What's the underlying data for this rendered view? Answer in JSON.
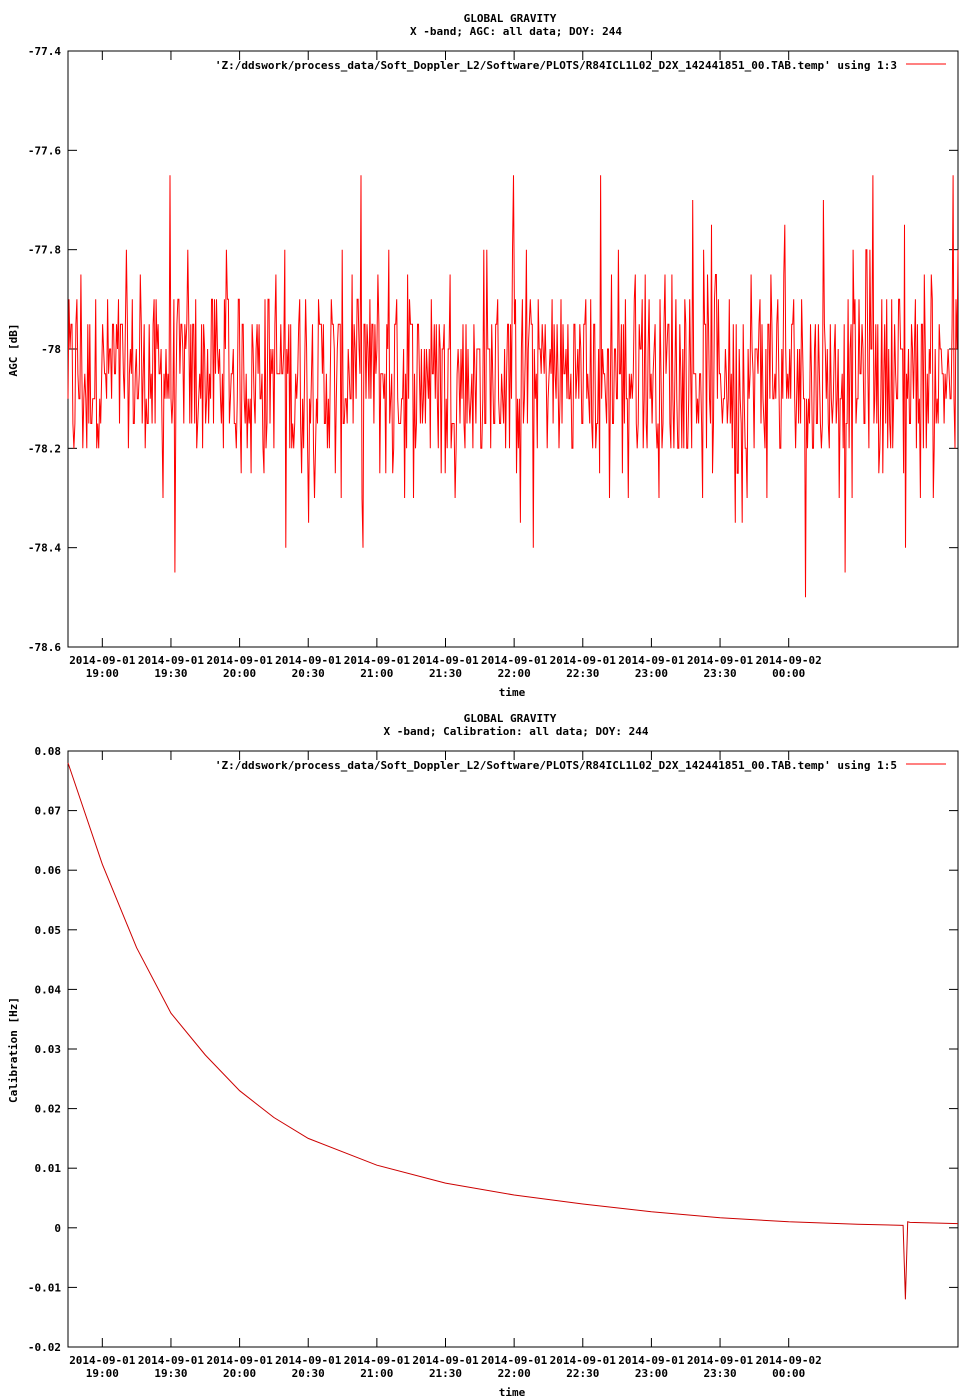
{
  "figure": {
    "background": "#ffffff",
    "line_color": "#ff0000",
    "calib_line_color": "#cc0000"
  },
  "chart_data": [
    {
      "type": "line",
      "title": "GLOBAL GRAVITY",
      "subtitle": "X -band; AGC: all data; DOY: 244",
      "xlabel": "time",
      "ylabel": "AGC [dB]",
      "ylim": [
        -78.6,
        -77.4
      ],
      "yticks": [
        -77.4,
        -77.6,
        -77.8,
        -78,
        -78.2,
        -78.4,
        -78.6
      ],
      "ytick_labels": [
        "-77.4",
        "-77.6",
        "-77.8",
        "-78",
        "-78.2",
        "-78.4",
        "-78.6"
      ],
      "xlim": [
        "2014-09-01 18:45",
        "2014-09-02 01:14"
      ],
      "xticks": [
        "2014-09-01 19:00",
        "2014-09-01 19:30",
        "2014-09-01 20:00",
        "2014-09-01 20:30",
        "2014-09-01 21:00",
        "2014-09-01 21:30",
        "2014-09-01 22:00",
        "2014-09-01 22:30",
        "2014-09-01 23:00",
        "2014-09-01 23:30",
        "2014-09-02 00:00"
      ],
      "xtick_date_labels": [
        "2014-09-01",
        "2014-09-01",
        "2014-09-01",
        "2014-09-01",
        "2014-09-01",
        "2014-09-01",
        "2014-09-01",
        "2014-09-01",
        "2014-09-01",
        "2014-09-01",
        "2014-09-02"
      ],
      "xtick_time_labels": [
        "19:00",
        "19:30",
        "20:00",
        "20:30",
        "21:00",
        "21:30",
        "22:00",
        "22:30",
        "23:00",
        "23:30",
        "00:00"
      ],
      "legend_position": "top-right",
      "series": [
        {
          "name": "'Z:/ddswork/process_data/Soft_Doppler_L2/Software/PLOTS/R84ICL1L02_D2X_142441851_00.TAB.temp' using 1:3",
          "baseline": -78.05,
          "quantization": 0.05,
          "min": -78.6,
          "max": -77.6,
          "typical_range": [
            -78.3,
            -77.9
          ]
        }
      ]
    },
    {
      "type": "line",
      "title": "GLOBAL GRAVITY",
      "subtitle": "X -band; Calibration: all data; DOY: 244",
      "xlabel": "time",
      "ylabel": "Calibration [Hz]",
      "ylim": [
        -0.02,
        0.08
      ],
      "yticks": [
        0.08,
        0.07,
        0.06,
        0.05,
        0.04,
        0.03,
        0.02,
        0.01,
        0,
        -0.01,
        -0.02
      ],
      "ytick_labels": [
        "0.08",
        "0.07",
        "0.06",
        "0.05",
        "0.04",
        "0.03",
        "0.02",
        "0.01",
        "0",
        "-0.01",
        "-0.02"
      ],
      "xlim": [
        "2014-09-01 18:45",
        "2014-09-02 01:14"
      ],
      "xticks": [
        "2014-09-01 19:00",
        "2014-09-01 19:30",
        "2014-09-01 20:00",
        "2014-09-01 20:30",
        "2014-09-01 21:00",
        "2014-09-01 21:30",
        "2014-09-01 22:00",
        "2014-09-01 22:30",
        "2014-09-01 23:00",
        "2014-09-01 23:30",
        "2014-09-02 00:00"
      ],
      "xtick_date_labels": [
        "2014-09-01",
        "2014-09-01",
        "2014-09-01",
        "2014-09-01",
        "2014-09-01",
        "2014-09-01",
        "2014-09-01",
        "2014-09-01",
        "2014-09-01",
        "2014-09-01",
        "2014-09-02"
      ],
      "xtick_time_labels": [
        "19:00",
        "19:30",
        "20:00",
        "20:30",
        "21:00",
        "21:30",
        "22:00",
        "22:30",
        "23:00",
        "23:30",
        "00:00"
      ],
      "legend_position": "top-right",
      "series": [
        {
          "name": "'Z:/ddswork/process_data/Soft_Doppler_L2/Software/PLOTS/R84ICL1L02_D2X_142441851_00.TAB.temp' using 1:5",
          "x": [
            "2014-09-01 18:45",
            "2014-09-01 19:00",
            "2014-09-01 19:15",
            "2014-09-01 19:30",
            "2014-09-01 19:45",
            "2014-09-01 20:00",
            "2014-09-01 20:15",
            "2014-09-01 20:30",
            "2014-09-01 21:00",
            "2014-09-01 21:30",
            "2014-09-01 22:00",
            "2014-09-01 22:30",
            "2014-09-01 23:00",
            "2014-09-01 23:30",
            "2014-09-02 00:00",
            "2014-09-02 00:30",
            "2014-09-02 00:50",
            "2014-09-02 00:51",
            "2014-09-02 00:52",
            "2014-09-02 00:53",
            "2014-09-02 01:14"
          ],
          "y": [
            0.078,
            0.061,
            0.047,
            0.036,
            0.029,
            0.023,
            0.0185,
            0.015,
            0.0105,
            0.0075,
            0.0055,
            0.004,
            0.0027,
            0.0017,
            0.001,
            0.0006,
            0.0004,
            -0.012,
            0.001,
            0.0009,
            0.0007
          ]
        }
      ]
    }
  ]
}
